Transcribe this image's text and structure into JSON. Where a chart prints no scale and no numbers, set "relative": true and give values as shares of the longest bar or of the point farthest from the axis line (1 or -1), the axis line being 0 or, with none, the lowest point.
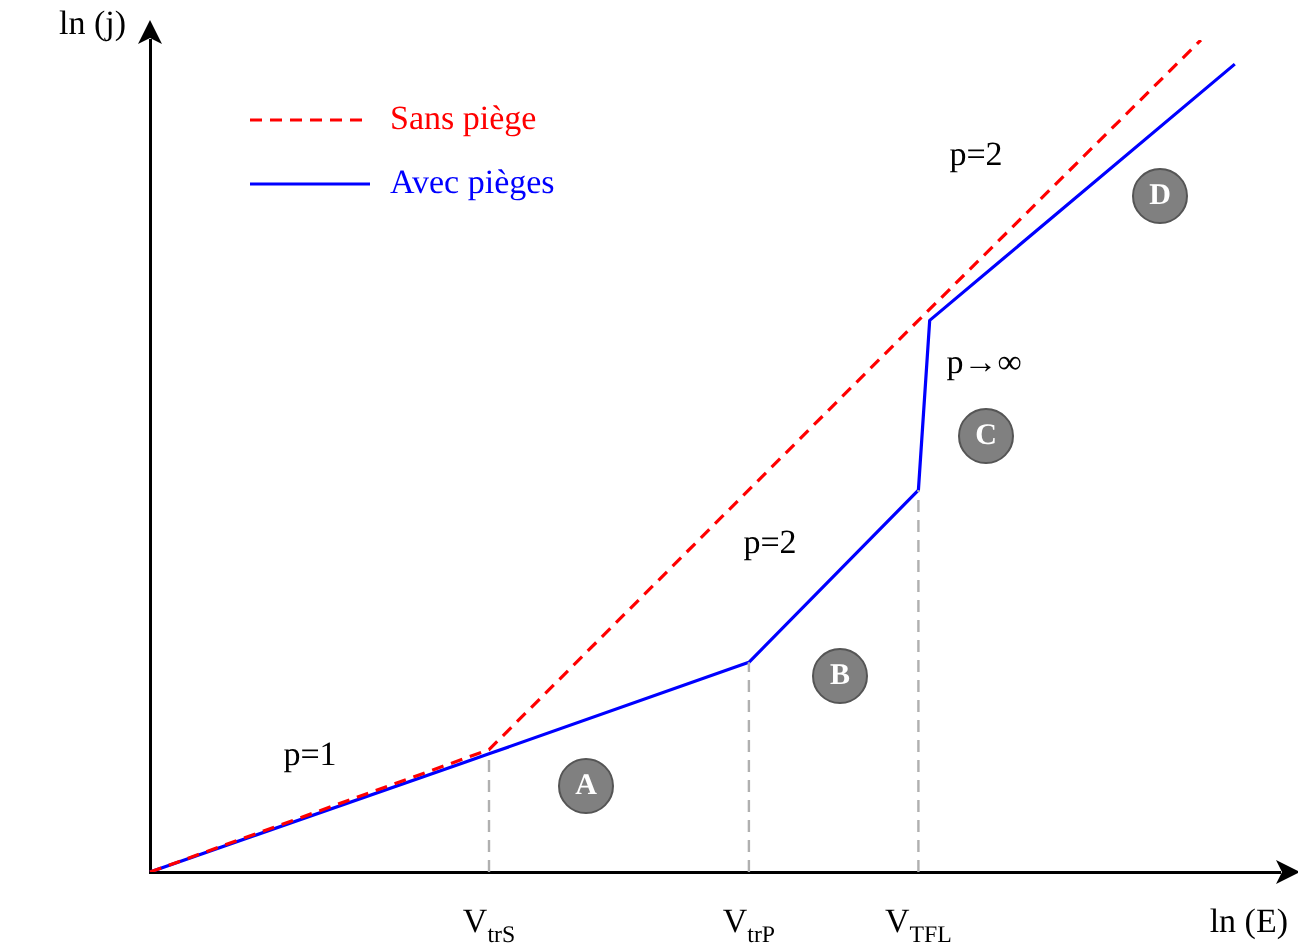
{
  "chart_data": {
    "type": "line",
    "relative": true,
    "xlabel": "ln (E)",
    "ylabel": "ln (j)",
    "categories": [
      null,
      null,
      null,
      null,
      null,
      null,
      null,
      null,
      null,
      null,
      null,
      null,
      null,
      null,
      null,
      null,
      null,
      null,
      null,
      null,
      null,
      null,
      null,
      null,
      null,
      null,
      null,
      null,
      null,
      null,
      "V$_{trS}$",
      null,
      null,
      null,
      null,
      null,
      null,
      null,
      null,
      null,
      null,
      null,
      null,
      null,
      null,
      null,
      null,
      null,
      null,
      null,
      null,
      null,
      null,
      "V$_{trP}$",
      null,
      null,
      null,
      null,
      null,
      null,
      null,
      null,
      null,
      null,
      null,
      null,
      null,
      null,
      "V$_{TFL}$",
      null,
      null,
      null,
      null,
      null,
      null,
      null,
      null,
      null,
      null,
      null,
      null,
      null,
      null,
      null,
      null,
      null,
      null,
      null,
      null,
      null,
      null,
      null,
      null,
      null,
      null,
      null,
      null,
      null,
      null,
      null,
      null
    ],
    "series": [
      {
        "name": "Sans piège",
        "color": "#ff0000",
        "line_style": "dashed",
        "values": [
          0,
          null,
          null,
          null,
          null,
          null,
          null,
          null,
          null,
          null,
          null,
          null,
          null,
          null,
          null,
          null,
          null,
          null,
          null,
          null,
          null,
          null,
          null,
          null,
          null,
          null,
          null,
          null,
          null,
          null,
          0.147,
          null,
          null,
          null,
          null,
          null,
          null,
          null,
          null,
          null,
          null,
          null,
          null,
          null,
          null,
          null,
          null,
          null,
          null,
          null,
          null,
          null,
          null,
          null,
          null,
          null,
          null,
          null,
          null,
          null,
          null,
          null,
          null,
          null,
          null,
          null,
          null,
          null,
          0.663,
          null,
          null,
          null,
          null,
          null,
          null,
          null,
          null,
          null,
          null,
          null,
          null,
          null,
          null,
          null,
          null,
          null,
          null,
          null,
          null,
          null,
          null,
          null,
          null,
          1,
          null,
          null,
          null,
          null,
          null,
          null,
          null
        ]
      },
      {
        "name": "Avec pièges",
        "color": "#0000ff",
        "line_style": "solid",
        "values": [
          0,
          null,
          null,
          null,
          null,
          null,
          null,
          null,
          null,
          null,
          null,
          null,
          null,
          null,
          null,
          null,
          null,
          null,
          null,
          null,
          null,
          null,
          null,
          null,
          null,
          null,
          null,
          null,
          null,
          null,
          0.142,
          null,
          null,
          null,
          null,
          null,
          null,
          null,
          null,
          null,
          null,
          null,
          null,
          null,
          null,
          null,
          null,
          null,
          null,
          null,
          null,
          null,
          null,
          0.252,
          null,
          null,
          null,
          null,
          null,
          null,
          null,
          null,
          null,
          null,
          null,
          null,
          null,
          null,
          0.459,
          0.663,
          null,
          null,
          null,
          null,
          null,
          null,
          null,
          null,
          null,
          null,
          null,
          null,
          null,
          null,
          null,
          null,
          null,
          null,
          null,
          null,
          null,
          null,
          null,
          null,
          null,
          null,
          0.971,
          null,
          null,
          null,
          null
        ]
      }
    ],
    "ref_lines": [
      {
        "axis": "x",
        "value": "V$_{trS}$",
        "color": "#b0b0b0",
        "line_style": "dashed"
      },
      {
        "axis": "x",
        "value": "V$_{trP}$",
        "color": "#b0b0b0",
        "line_style": "dashed"
      },
      {
        "axis": "x",
        "value": "V$_{TFL}$",
        "color": "#b0b0b0",
        "line_style": "dashed"
      }
    ],
    "annotations": [
      "p=1",
      "p=2",
      "p→∞",
      "p=2",
      "A",
      "B",
      "C",
      "D"
    ],
    "legend": "top left",
    "grid": false,
    "marker": "none"
  }
}
